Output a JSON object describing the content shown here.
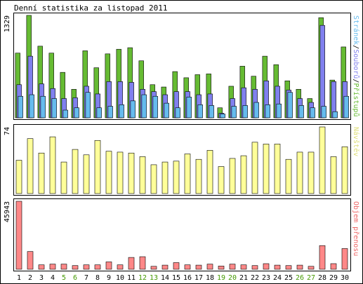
{
  "colors": {
    "background": "#ffffff",
    "panel_bg": "#ffffff",
    "frame": "#000000",
    "hits": "#66bb33",
    "files": "#8080ee",
    "pages": "#66bbee",
    "visits": "#ffff99",
    "kbytes": "#ff8888",
    "weekend_label": "#449900",
    "weekday_label": "#000000"
  },
  "chart_data": {
    "type": "bar",
    "title": "Denní statistika za listopad 2011",
    "categories": [
      "1",
      "2",
      "3",
      "4",
      "5",
      "6",
      "7",
      "8",
      "9",
      "10",
      "11",
      "12",
      "13",
      "14",
      "15",
      "16",
      "17",
      "18",
      "19",
      "20",
      "21",
      "22",
      "23",
      "24",
      "25",
      "26",
      "27",
      "28",
      "29",
      "30"
    ],
    "weekend_days": [
      "5",
      "6",
      "12",
      "13",
      "19",
      "20",
      "26",
      "27"
    ],
    "panels": [
      {
        "id": "top",
        "max_label": "1329",
        "ylim": [
          0,
          1329
        ],
        "legend_parts": [
          "Stránek",
          "/",
          "Souborů",
          "/",
          "Přístupů"
        ],
        "legend_colors": [
          "#66bbee",
          "#000000",
          "#8080ee",
          "#000000",
          "#66bb33"
        ],
        "series": [
          {
            "name": "Přístupů",
            "key": "hits",
            "values": [
              840,
              1330,
              930,
              840,
              590,
              370,
              870,
              650,
              830,
              890,
              910,
              740,
              430,
              400,
              600,
              520,
              560,
              570,
              130,
              410,
              670,
              540,
              800,
              690,
              480,
              370,
              250,
              1300,
              490,
              920
            ]
          },
          {
            "name": "Souborů",
            "key": "files",
            "values": [
              430,
              800,
              440,
              380,
              250,
              260,
              410,
              310,
              470,
              470,
              460,
              370,
              340,
              300,
              340,
              340,
              300,
              310,
              60,
              250,
              390,
              370,
              480,
              410,
              360,
              250,
              200,
              1200,
              470,
              470
            ]
          },
          {
            "name": "Stránek",
            "key": "pages",
            "values": [
              280,
              300,
              280,
              250,
              100,
              130,
              330,
              130,
              150,
              170,
              220,
              300,
              280,
              190,
              130,
              270,
              170,
              160,
              50,
              150,
              160,
              200,
              170,
              180,
              330,
              160,
              130,
              150,
              80,
              280
            ]
          }
        ]
      },
      {
        "id": "middle",
        "max_label": "74",
        "ylim": [
          0,
          74
        ],
        "legend_parts": [
          "Návštěv"
        ],
        "legend_colors": [
          "#dddd77"
        ],
        "series": [
          {
            "name": "Návštěv",
            "key": "visits",
            "values": [
              37,
              61,
              45,
              63,
              35,
              49,
              43,
              59,
              47,
              46,
              45,
              41,
              32,
              35,
              36,
              44,
              38,
              48,
              30,
              39,
              42,
              57,
              55,
              55,
              38,
              46,
              46,
              74,
              41,
              52
            ]
          }
        ]
      },
      {
        "id": "bottom",
        "max_label": "45943",
        "ylim": [
          0,
          45943
        ],
        "legend_parts": [
          "Objem přenosu"
        ],
        "legend_colors": [
          "#ee6666"
        ],
        "series": [
          {
            "name": "Objem přenosu",
            "key": "kbytes",
            "values": [
              45943,
              12000,
              3000,
              3500,
              3500,
              2500,
              3000,
              3000,
              5000,
              3000,
              8000,
              8500,
              2000,
              2800,
              4500,
              3000,
              2800,
              3500,
              2200,
              3500,
              3000,
              2500,
              3800,
              2800,
              2500,
              2800,
              2000,
              16000,
              3800,
              14000
            ]
          }
        ]
      }
    ]
  }
}
